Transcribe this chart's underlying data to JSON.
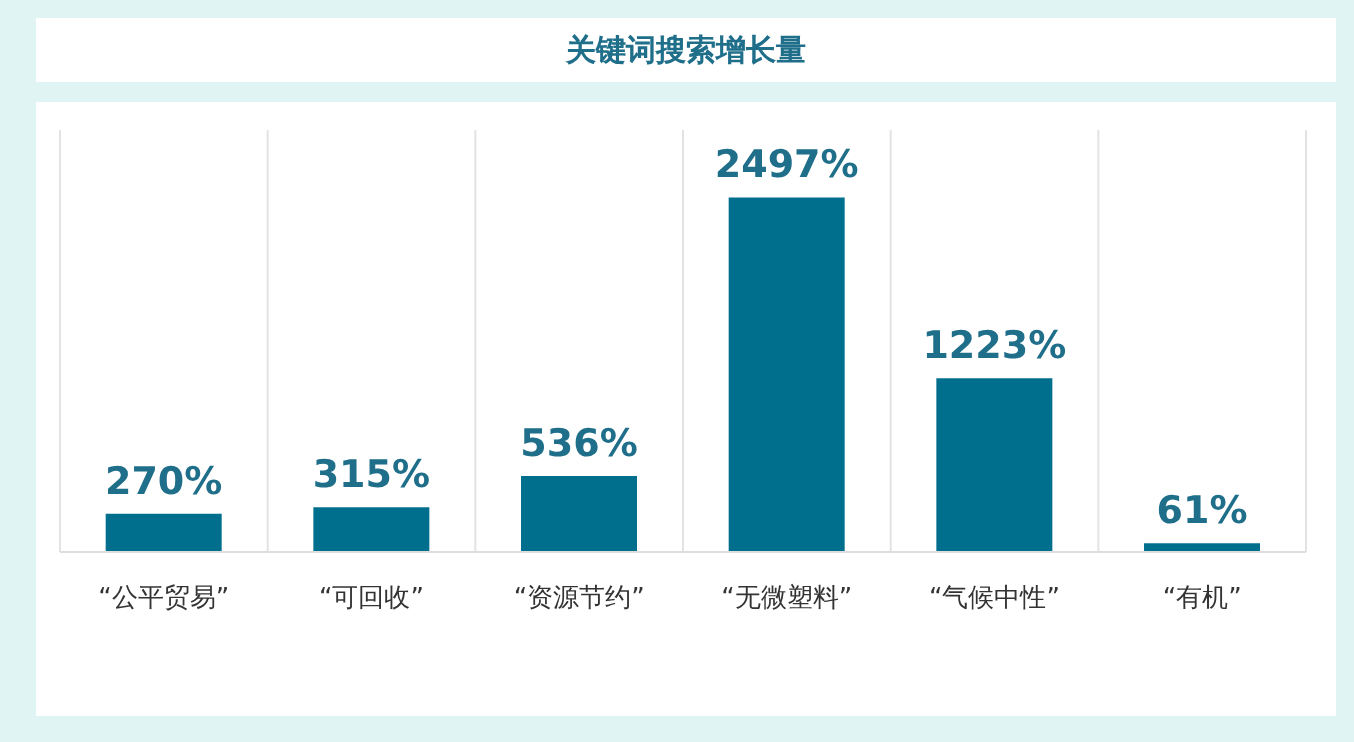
{
  "chart_data": {
    "type": "bar",
    "title": "关键词搜索增长量",
    "categories": [
      "“公平贸易”",
      "“可回收”",
      "“资源节约”",
      "“无微塑料”",
      "“气候中性”",
      "“有机”"
    ],
    "values": [
      270,
      315,
      536,
      2497,
      1223,
      61
    ],
    "value_labels": [
      "270%",
      "315%",
      "536%",
      "2497%",
      "1223%",
      "61%"
    ],
    "color": "#006f8e",
    "grid": "x"
  }
}
